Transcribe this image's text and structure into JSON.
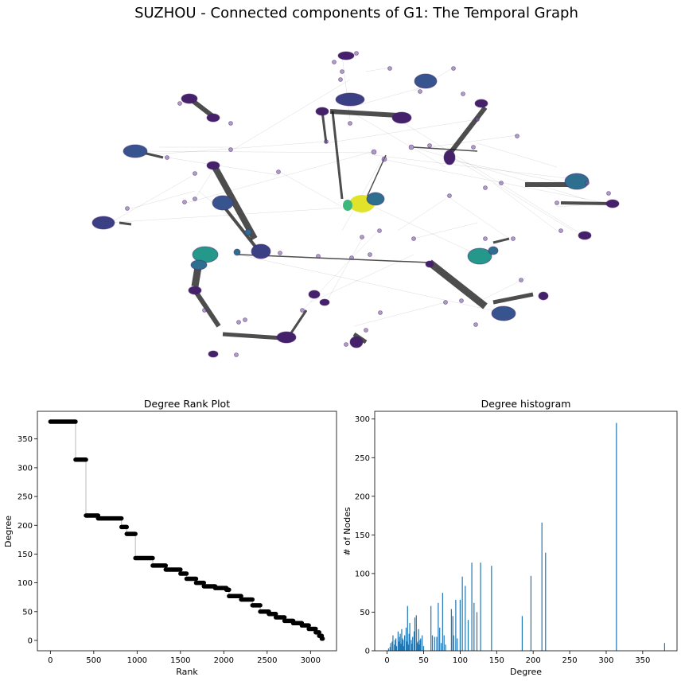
{
  "figure": {
    "title": "SUZHOU - Connected components of G1: The Temporal Graph"
  },
  "colors": {
    "dark_purple": "#46216b",
    "purple_mid": "#3b3f83",
    "blue": "#37548f",
    "teal_blue": "#2e6e8e",
    "teal": "#23988b",
    "green": "#3db87a",
    "yellow": "#e0e32a",
    "hist_bar": "#1f77b4",
    "rank_marker": "#000000"
  },
  "chart_data": [
    {
      "type": "network",
      "title": "SUZHOU - Connected components of G1: The Temporal Graph",
      "node_color_scale": "viridis",
      "clusters": [
        {
          "id": "c1",
          "color": "dark_purple",
          "size": "medium"
        },
        {
          "id": "c2",
          "color": "blue",
          "size": "large"
        },
        {
          "id": "c3",
          "color": "dark_purple",
          "size": "medium"
        },
        {
          "id": "c4",
          "color": "yellow",
          "size": "large"
        },
        {
          "id": "c5",
          "color": "teal",
          "size": "large"
        },
        {
          "id": "c6",
          "color": "teal_blue",
          "size": "medium"
        }
      ]
    },
    {
      "type": "scatter",
      "title": "Degree Rank Plot",
      "xlabel": "Rank",
      "ylabel": "Degree",
      "xlim": [
        -150,
        3300
      ],
      "ylim": [
        -18,
        398
      ],
      "xticks": [
        0,
        500,
        1000,
        1500,
        2000,
        2500,
        3000
      ],
      "yticks": [
        0,
        50,
        100,
        150,
        200,
        250,
        300,
        350
      ],
      "steps": [
        [
          0,
          290,
          380
        ],
        [
          290,
          410,
          314
        ],
        [
          410,
          550,
          217
        ],
        [
          550,
          820,
          212
        ],
        [
          820,
          880,
          197
        ],
        [
          880,
          980,
          185
        ],
        [
          980,
          1180,
          143
        ],
        [
          1180,
          1330,
          130
        ],
        [
          1330,
          1500,
          123
        ],
        [
          1500,
          1570,
          116
        ],
        [
          1570,
          1680,
          107
        ],
        [
          1680,
          1770,
          100
        ],
        [
          1770,
          1900,
          94
        ],
        [
          1900,
          2030,
          91
        ],
        [
          2030,
          2060,
          88
        ],
        [
          2060,
          2200,
          77
        ],
        [
          2200,
          2330,
          71
        ],
        [
          2330,
          2420,
          61
        ],
        [
          2420,
          2520,
          50
        ],
        [
          2520,
          2600,
          46
        ],
        [
          2600,
          2700,
          40
        ],
        [
          2700,
          2800,
          34
        ],
        [
          2800,
          2900,
          30
        ],
        [
          2900,
          2980,
          26
        ],
        [
          2980,
          3060,
          20
        ],
        [
          3060,
          3100,
          14
        ],
        [
          3100,
          3130,
          8
        ],
        [
          3130,
          3140,
          3
        ]
      ]
    },
    {
      "type": "bar",
      "title": "Degree histogram",
      "xlabel": "Degree",
      "ylabel": "# of Nodes",
      "xlim": [
        -17,
        397
      ],
      "ylim": [
        0,
        310
      ],
      "xticks": [
        0,
        50,
        100,
        150,
        200,
        250,
        300,
        350
      ],
      "yticks": [
        0,
        50,
        100,
        150,
        200,
        250,
        300
      ],
      "degrees": [
        2,
        4,
        5,
        7,
        8,
        10,
        11,
        12,
        13,
        15,
        16,
        17,
        18,
        19,
        20,
        21,
        22,
        23,
        24,
        26,
        27,
        28,
        29,
        30,
        31,
        33,
        34,
        35,
        37,
        38,
        40,
        41,
        42,
        43,
        44,
        45,
        46,
        48,
        50,
        60,
        62,
        65,
        68,
        70,
        72,
        74,
        76,
        78,
        80,
        88,
        90,
        91,
        94,
        96,
        100,
        103,
        107,
        111,
        116,
        119,
        123,
        128,
        143,
        185,
        197,
        212,
        217,
        314,
        380
      ],
      "counts": [
        3,
        5,
        10,
        12,
        20,
        8,
        14,
        16,
        6,
        25,
        12,
        18,
        22,
        9,
        28,
        16,
        14,
        6,
        20,
        30,
        12,
        58,
        8,
        22,
        36,
        14,
        9,
        18,
        25,
        43,
        46,
        10,
        12,
        28,
        8,
        14,
        16,
        20,
        6,
        58,
        20,
        18,
        18,
        62,
        30,
        10,
        75,
        20,
        8,
        54,
        45,
        20,
        66,
        16,
        66,
        96,
        84,
        40,
        114,
        62,
        50,
        114,
        110,
        45,
        97,
        166,
        127,
        295,
        10
      ]
    }
  ]
}
